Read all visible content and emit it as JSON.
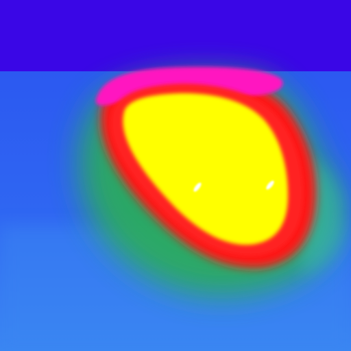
{
  "image": {
    "kind": "false-color thermal heatmap",
    "subject": "heat-signature-blob",
    "palette": {
      "top_band": "#3a06e6",
      "background": "#2f63f2",
      "background_light": "#3f8cf2",
      "cool_green": "#2cae57",
      "warm_red": "#ff1818",
      "hot_magenta": "#ff18c0",
      "hottest_yellow": "#ffff00",
      "highlight": "#ffffff"
    },
    "highlights": [
      {
        "name": "hotspot-left"
      },
      {
        "name": "hotspot-right"
      }
    ]
  }
}
